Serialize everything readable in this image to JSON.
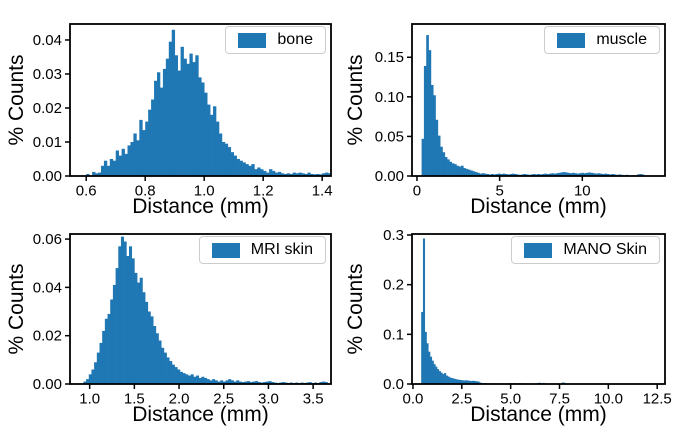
{
  "figure": {
    "background": "#ffffff"
  },
  "colors": {
    "bar": "#1f77b4",
    "spine": "#000000",
    "tick": "#000000",
    "text": "#000000",
    "legend_border": "#cccccc",
    "legend_background": "#ffffff"
  },
  "chart_data": [
    {
      "type": "bar",
      "subtype": "histogram",
      "legend_label": "bone",
      "legend_position": "upper right",
      "xlabel": "Distance (mm)",
      "ylabel": "% Counts",
      "xlim": [
        0.545,
        1.43
      ],
      "ylim": [
        0,
        0.0447
      ],
      "xticks": {
        "values": [
          0.6,
          0.8,
          1.0,
          1.2,
          1.4
        ],
        "labels": [
          "0.6",
          "0.8",
          "1.0",
          "1.2",
          "1.4"
        ]
      },
      "yticks": {
        "values": [
          0.0,
          0.01,
          0.02,
          0.03,
          0.04
        ],
        "labels": [
          "0.00",
          "0.01",
          "0.02",
          "0.03",
          "0.04"
        ]
      },
      "grid": false,
      "bins": {
        "start": 0.6,
        "width": 0.01
      },
      "heights": [
        0.0006,
        0,
        0.0012,
        0.0008,
        0.001,
        0.003,
        0.0045,
        0.003,
        0.005,
        0.0045,
        0.0075,
        0.006,
        0.008,
        0.0065,
        0.009,
        0.01,
        0.0125,
        0.0105,
        0.0165,
        0.0135,
        0.016,
        0.0195,
        0.0225,
        0.028,
        0.0305,
        0.026,
        0.0315,
        0.0345,
        0.0395,
        0.043,
        0.0355,
        0.031,
        0.038,
        0.0345,
        0.033,
        0.036,
        0.0335,
        0.0355,
        0.029,
        0.0275,
        0.0245,
        0.021,
        0.018,
        0.0205,
        0.016,
        0.0125,
        0.01,
        0.0095,
        0.0085,
        0.007,
        0.006,
        0.005,
        0.0045,
        0.004,
        0.0035,
        0.003,
        0.0035,
        0.002,
        0.0025,
        0.002,
        0.0015,
        0.001,
        0.002,
        0.0015,
        0.001,
        0.0012,
        0.0008,
        0.0006,
        0.0008,
        0.0006,
        0.001,
        0.0008,
        0.001,
        0.0008,
        0.0006,
        0.001,
        0.0006,
        0.0005,
        0.0006,
        0.0005,
        0.0008,
        0.001,
        0.0008
      ]
    },
    {
      "type": "bar",
      "subtype": "histogram",
      "legend_label": "muscle",
      "legend_position": "upper right",
      "xlabel": "Distance (mm)",
      "ylabel": "% Counts",
      "xlim": [
        -0.3,
        15.0
      ],
      "ylim": [
        0,
        0.192
      ],
      "xticks": {
        "values": [
          0,
          5,
          10
        ],
        "labels": [
          "0",
          "5",
          "10"
        ]
      },
      "yticks": {
        "values": [
          0.0,
          0.05,
          0.1,
          0.15
        ],
        "labels": [
          "0.00",
          "0.05",
          "0.10",
          "0.15"
        ]
      },
      "grid": false,
      "bins": {
        "start": 0.28,
        "width": 0.14
      },
      "heights": [
        0.047,
        0.139,
        0.178,
        0.159,
        0.115,
        0.102,
        0.071,
        0.051,
        0.037,
        0.03,
        0.024,
        0.021,
        0.018,
        0.016,
        0.015,
        0.013,
        0.012,
        0.013,
        0.01,
        0.009,
        0.008,
        0.007,
        0.006,
        0.005,
        0.004,
        0.003,
        0.0035,
        0.003,
        0.0025,
        0.002,
        0.0025,
        0.002,
        0.0025,
        0.003,
        0.0025,
        0.003,
        0.0025,
        0.002,
        0.0025,
        0.003,
        0.0025,
        0.002,
        0.0015,
        0.002,
        0.0025,
        0.002,
        0.0015,
        0.002,
        0.0025,
        0.002,
        0.0025,
        0.002,
        0.0025,
        0.003,
        0.0025,
        0.003,
        0.0035,
        0.003,
        0.0035,
        0.004,
        0.0045,
        0.005,
        0.0045,
        0.004,
        0.0035,
        0.004,
        0.0035,
        0.003,
        0.0035,
        0.004,
        0.0035,
        0.004,
        0.0045,
        0.004,
        0.0035,
        0.003,
        0.0035,
        0.003,
        0.0025,
        0.003,
        0.0025,
        0.002,
        0.0025,
        0.002,
        0.0015,
        0.002,
        0.0015,
        0.001,
        0.0015,
        0.001,
        0.0005,
        0.001,
        0.0005,
        0.002,
        0.0025,
        0.002
      ]
    },
    {
      "type": "bar",
      "subtype": "histogram",
      "legend_label": "MRI skin",
      "legend_position": "upper right",
      "xlabel": "Distance (mm)",
      "ylabel": "% Counts",
      "xlim": [
        0.78,
        3.7
      ],
      "ylim": [
        0,
        0.0621
      ],
      "xticks": {
        "values": [
          1.0,
          1.5,
          2.0,
          2.5,
          3.0,
          3.5
        ],
        "labels": [
          "1.0",
          "1.5",
          "2.0",
          "2.5",
          "3.0",
          "3.5"
        ]
      },
      "yticks": {
        "values": [
          0.0,
          0.02,
          0.04,
          0.06
        ],
        "labels": [
          "0.00",
          "0.02",
          "0.04",
          "0.06"
        ]
      },
      "grid": false,
      "bins": {
        "start": 0.93,
        "width": 0.03
      },
      "heights": [
        0.001,
        0.002,
        0.004,
        0.006,
        0.009,
        0.013,
        0.017,
        0.022,
        0.027,
        0.029,
        0.035,
        0.041,
        0.048,
        0.057,
        0.061,
        0.059,
        0.053,
        0.057,
        0.052,
        0.046,
        0.042,
        0.044,
        0.038,
        0.034,
        0.03,
        0.028,
        0.024,
        0.021,
        0.018,
        0.015,
        0.013,
        0.011,
        0.0095,
        0.008,
        0.007,
        0.006,
        0.005,
        0.0045,
        0.004,
        0.0035,
        0.004,
        0.003,
        0.0035,
        0.0025,
        0.003,
        0.0025,
        0.002,
        0.0015,
        0.002,
        0.0015,
        0.001,
        0.0015,
        0.001,
        0.0015,
        0.002,
        0.0015,
        0.001,
        0.0015,
        0.001,
        0.0008,
        0.001,
        0.0012,
        0.0008,
        0.001,
        0.0012,
        0.0008,
        0.0006,
        0.0008,
        0.001,
        0.0012,
        0.0008,
        0.0006,
        0.0004,
        0.0006,
        0.0008,
        0.0006,
        0.0004,
        0.0006,
        0.0004,
        0.0006,
        0.0004,
        0.0006,
        0.0004,
        0.0006,
        0.0008,
        0.0004,
        0.0006,
        0.0004,
        0.0008,
        0.001,
        0.0008
      ]
    },
    {
      "type": "bar",
      "subtype": "histogram",
      "legend_label": "MANO Skin",
      "legend_position": "upper right",
      "xlabel": "Distance (mm)",
      "ylabel": "% Counts",
      "xlim": [
        -0.05,
        12.9
      ],
      "ylim": [
        0,
        0.302
      ],
      "xticks": {
        "values": [
          0.0,
          2.5,
          5.0,
          7.5,
          10.0,
          12.5
        ],
        "labels": [
          "0.0",
          "2.5",
          "5.0",
          "7.5",
          "10.0",
          "12.5"
        ]
      },
      "yticks": {
        "values": [
          0.0,
          0.1,
          0.2,
          0.3
        ],
        "labels": [
          "0.0",
          "0.1",
          "0.2",
          "0.3"
        ]
      },
      "grid": false,
      "bins": {
        "start": 0.42,
        "width": 0.09
      },
      "heights": [
        0.145,
        0.293,
        0.105,
        0.082,
        0.065,
        0.055,
        0.047,
        0.04,
        0.035,
        0.03,
        0.026,
        0.023,
        0.02,
        0.022,
        0.017,
        0.015,
        0.013,
        0.012,
        0.011,
        0.01,
        0.009,
        0.0085,
        0.008,
        0.0075,
        0.007,
        0.0075,
        0.007,
        0.0065,
        0.006,
        0.0065,
        0.006,
        0.0055,
        0.005,
        0.003,
        0.002,
        0.0015,
        0.002,
        0.0015,
        0.001,
        0.0015,
        0.001,
        0.0015,
        0.001,
        0.0008,
        0.001,
        0.0012,
        0.0008,
        0,
        0,
        0.0015,
        0.002,
        0,
        0.0018,
        0.0015,
        0,
        0.0018,
        0.0015,
        0,
        0.0018,
        0,
        0,
        0,
        0,
        0,
        0,
        0,
        0.0022,
        0.0025,
        0,
        0.0022,
        0,
        0,
        0,
        0,
        0,
        0,
        0,
        0,
        0,
        0,
        0.003,
        0.0025
      ]
    }
  ]
}
